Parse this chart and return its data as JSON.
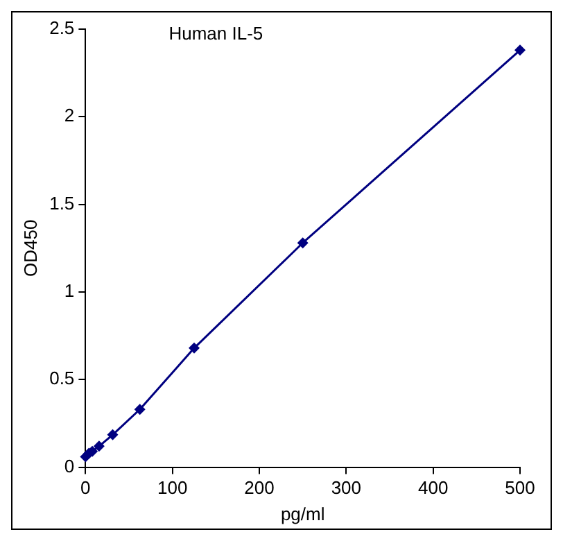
{
  "chart_data": {
    "type": "line",
    "title": "Human IL-5",
    "xlabel": "pg/ml",
    "ylabel": "OD450",
    "x": [
      0,
      3.9,
      7.8,
      15.6,
      31.25,
      62.5,
      125,
      250,
      500
    ],
    "series": [
      {
        "color": "#000080",
        "values": [
          0.06,
          0.08,
          0.09,
          0.12,
          0.185,
          0.33,
          0.68,
          1.28,
          2.38
        ]
      }
    ],
    "xlim": [
      0,
      500
    ],
    "xticks": [
      0,
      100,
      200,
      300,
      400,
      500
    ],
    "ylim": [
      0,
      2.5
    ],
    "yticks": [
      0,
      0.5,
      1,
      1.5,
      2,
      2.5
    ],
    "grid": false,
    "legend": false,
    "marker": "diamond",
    "line_style": "solid"
  }
}
